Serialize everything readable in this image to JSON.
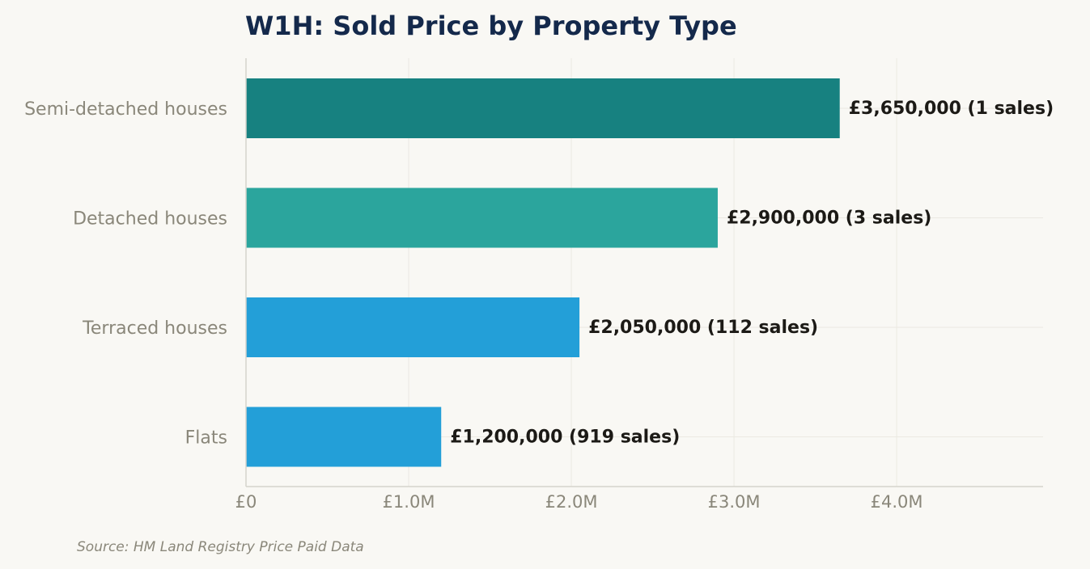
{
  "chart_data": {
    "type": "bar",
    "orientation": "horizontal",
    "title": "W1H: Sold Price by Property Type",
    "source": "Source: HM Land Registry Price Paid Data",
    "xlabel": "",
    "ylabel": "",
    "currency": "£",
    "xlim": [
      0,
      4900000
    ],
    "x_ticks": [
      0,
      1000000,
      2000000,
      3000000,
      4000000
    ],
    "x_tick_labels": [
      "£0",
      "£1.0M",
      "£2.0M",
      "£3.0M",
      "£4.0M"
    ],
    "grid": true,
    "categories": [
      "Semi-detached houses",
      "Detached houses",
      "Terraced houses",
      "Flats"
    ],
    "values": [
      3650000,
      2900000,
      2050000,
      1200000
    ],
    "sales": [
      1,
      3,
      112,
      919
    ],
    "value_labels": [
      "£3,650,000  (1 sales)",
      "£2,900,000  (3 sales)",
      "£2,050,000  (112 sales)",
      "£1,200,000  (919 sales)"
    ],
    "bar_colors": [
      "#178180",
      "#2ba59d",
      "#239fd8",
      "#239fd8"
    ]
  }
}
